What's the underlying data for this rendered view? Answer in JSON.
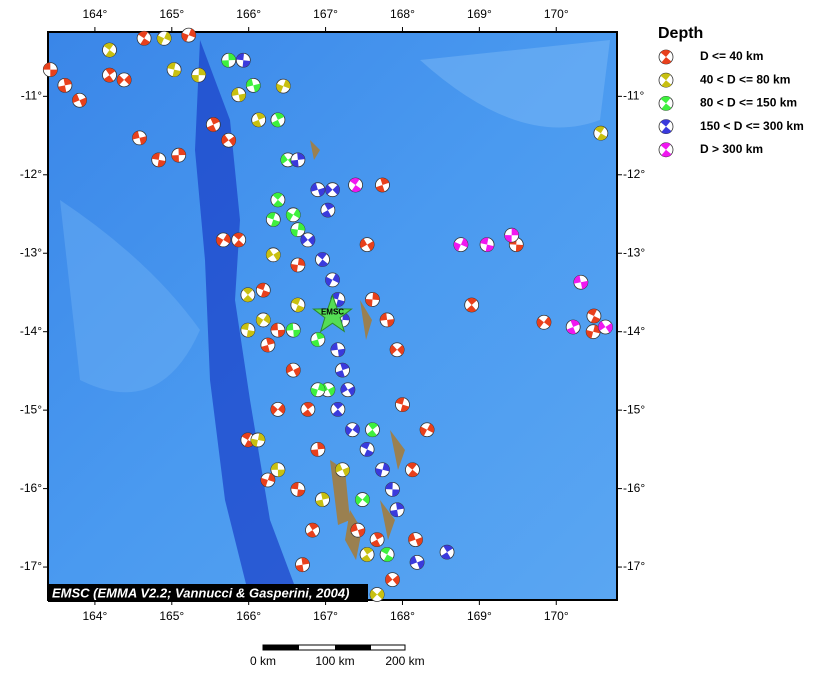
{
  "map": {
    "lonlim": [
      163.39,
      170.79
    ],
    "latlim": [
      -17.42,
      -10.18
    ],
    "lonticks": [
      {
        "value": 164,
        "label": "164°"
      },
      {
        "value": 165,
        "label": "165°"
      },
      {
        "value": 166,
        "label": "166°"
      },
      {
        "value": 167,
        "label": "167°"
      },
      {
        "value": 168,
        "label": "168°"
      },
      {
        "value": 169,
        "label": "169°"
      },
      {
        "value": 170,
        "label": "170°"
      }
    ],
    "latticks": [
      {
        "value": -11,
        "label": "-11°"
      },
      {
        "value": -12,
        "label": "-12°"
      },
      {
        "value": -13,
        "label": "-13°"
      },
      {
        "value": -14,
        "label": "-14°"
      },
      {
        "value": -15,
        "label": "-15°"
      },
      {
        "value": -16,
        "label": "-16°"
      },
      {
        "value": -17,
        "label": "-17°"
      }
    ],
    "legend": {
      "title": "Depth",
      "classes": [
        {
          "label": "D <= 40 km",
          "color": "#e8401c",
          "events": [
            [
              163.42,
              -10.66
            ],
            [
              163.61,
              -10.86
            ],
            [
              163.8,
              -11.05
            ],
            [
              164.19,
              -10.73
            ],
            [
              164.38,
              -10.79
            ],
            [
              164.64,
              -10.26
            ],
            [
              165.22,
              -10.22
            ],
            [
              164.83,
              -11.81
            ],
            [
              165.09,
              -11.75
            ],
            [
              164.58,
              -11.53
            ],
            [
              165.54,
              -11.36
            ],
            [
              165.74,
              -11.56
            ],
            [
              165.87,
              -12.83
            ],
            [
              165.67,
              -12.83
            ],
            [
              166.19,
              -13.47
            ],
            [
              166.64,
              -13.15
            ],
            [
              166.38,
              -13.98
            ],
            [
              166.25,
              -14.17
            ],
            [
              166.58,
              -14.49
            ],
            [
              166.77,
              -14.99
            ],
            [
              166.38,
              -14.99
            ],
            [
              165.99,
              -15.38
            ],
            [
              166.25,
              -15.89
            ],
            [
              166.64,
              -16.01
            ],
            [
              166.9,
              -15.5
            ],
            [
              167.42,
              -16.53
            ],
            [
              167.67,
              -16.65
            ],
            [
              167.87,
              -17.16
            ],
            [
              168.13,
              -15.76
            ],
            [
              168.32,
              -15.25
            ],
            [
              168.0,
              -14.93
            ],
            [
              167.61,
              -13.59
            ],
            [
              167.8,
              -13.85
            ],
            [
              167.74,
              -12.13
            ],
            [
              167.54,
              -12.89
            ],
            [
              168.9,
              -13.66
            ],
            [
              169.84,
              -13.88
            ],
            [
              170.49,
              -13.8
            ],
            [
              170.48,
              -14.0
            ],
            [
              169.48,
              -12.89
            ],
            [
              166.7,
              -16.97
            ],
            [
              168.17,
              -16.65
            ],
            [
              166.83,
              -16.53
            ],
            [
              167.93,
              -14.23
            ]
          ]
        },
        {
          "label": "40 < D <= 80 km",
          "color": "#c8c010",
          "events": [
            [
              164.19,
              -10.41
            ],
            [
              164.9,
              -10.26
            ],
            [
              165.03,
              -10.66
            ],
            [
              165.35,
              -10.73
            ],
            [
              165.87,
              -10.98
            ],
            [
              166.13,
              -11.3
            ],
            [
              166.32,
              -13.02
            ],
            [
              165.99,
              -13.53
            ],
            [
              166.19,
              -13.85
            ],
            [
              166.64,
              -13.66
            ],
            [
              166.12,
              -15.38
            ],
            [
              166.38,
              -15.76
            ],
            [
              166.96,
              -16.14
            ],
            [
              167.22,
              -15.76
            ],
            [
              167.54,
              -16.84
            ],
            [
              167.67,
              -17.35
            ],
            [
              170.58,
              -11.47
            ],
            [
              166.45,
              -10.87
            ],
            [
              165.99,
              -13.98
            ]
          ]
        },
        {
          "label": "80 < D <= 150 km",
          "color": "#3ef03e",
          "events": [
            [
              165.74,
              -10.54
            ],
            [
              166.06,
              -10.86
            ],
            [
              166.38,
              -11.3
            ],
            [
              166.51,
              -11.81
            ],
            [
              166.38,
              -12.32
            ],
            [
              166.58,
              -12.51
            ],
            [
              166.32,
              -12.57
            ],
            [
              166.64,
              -12.7
            ],
            [
              166.58,
              -13.98
            ],
            [
              166.9,
              -14.1
            ],
            [
              167.03,
              -14.74
            ],
            [
              167.61,
              -15.25
            ],
            [
              167.48,
              -16.14
            ],
            [
              167.8,
              -16.84
            ],
            [
              166.9,
              -14.74
            ]
          ]
        },
        {
          "label": "150 < D <= 300 km",
          "color": "#3a3adc",
          "events": [
            [
              165.93,
              -10.54
            ],
            [
              166.64,
              -11.81
            ],
            [
              166.9,
              -12.19
            ],
            [
              167.03,
              -12.45
            ],
            [
              166.77,
              -12.83
            ],
            [
              166.96,
              -13.08
            ],
            [
              167.09,
              -13.34
            ],
            [
              167.16,
              -13.59
            ],
            [
              167.22,
              -13.85
            ],
            [
              167.16,
              -14.23
            ],
            [
              167.22,
              -14.49
            ],
            [
              167.29,
              -14.74
            ],
            [
              167.16,
              -14.99
            ],
            [
              167.35,
              -15.25
            ],
            [
              167.54,
              -15.5
            ],
            [
              167.74,
              -15.76
            ],
            [
              167.87,
              -16.01
            ],
            [
              167.93,
              -16.27
            ],
            [
              168.19,
              -16.94
            ],
            [
              168.58,
              -16.81
            ],
            [
              167.09,
              -12.19
            ]
          ]
        },
        {
          "label": "D > 300 km",
          "color": "#f018f0",
          "events": [
            [
              167.39,
              -12.13
            ],
            [
              168.76,
              -12.89
            ],
            [
              169.1,
              -12.89
            ],
            [
              169.42,
              -12.77
            ],
            [
              170.32,
              -13.37
            ],
            [
              170.22,
              -13.94
            ],
            [
              170.64,
              -13.94
            ]
          ]
        }
      ]
    },
    "epicenter": {
      "label": "EMSC",
      "lon": 167.09,
      "lat": -13.79,
      "color": "#55dd55"
    },
    "credit": "EMSC (EMMA V2.2; Vannucci & Gasperini, 2004)",
    "scalebar": [
      "0 km",
      "100 km",
      "200 km"
    ]
  }
}
